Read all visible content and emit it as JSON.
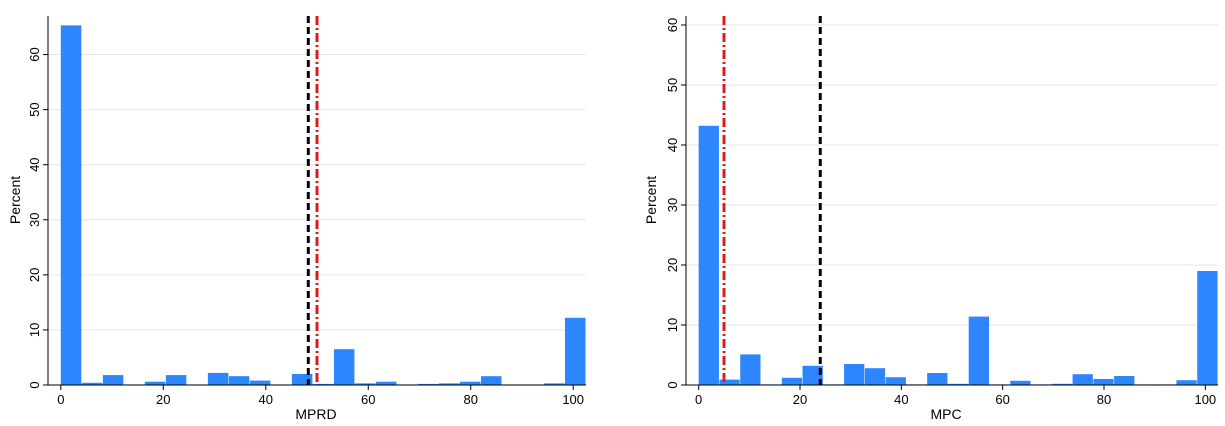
{
  "chart_data": [
    {
      "type": "bar",
      "xlabel": "MPRD",
      "ylabel": "Percent",
      "xlim": [
        -2.5,
        102.5
      ],
      "ylim": [
        0,
        67
      ],
      "xticks": [
        0,
        20,
        40,
        60,
        80,
        100
      ],
      "yticks": [
        0,
        10,
        20,
        30,
        40,
        50,
        60
      ],
      "grid": true,
      "bar_color": "#2e86ff",
      "bin_width": 4.1,
      "bins": [
        {
          "x": 0,
          "y": 65.3
        },
        {
          "x": 4.1,
          "y": 0.4
        },
        {
          "x": 8.2,
          "y": 1.8
        },
        {
          "x": 12.3,
          "y": 0.1
        },
        {
          "x": 16.4,
          "y": 0.6
        },
        {
          "x": 20.5,
          "y": 1.8
        },
        {
          "x": 24.6,
          "y": 0.1
        },
        {
          "x": 28.7,
          "y": 2.2
        },
        {
          "x": 32.8,
          "y": 1.6
        },
        {
          "x": 36.9,
          "y": 0.8
        },
        {
          "x": 41.0,
          "y": 0.1
        },
        {
          "x": 45.1,
          "y": 2.0
        },
        {
          "x": 49.2,
          "y": 0.2
        },
        {
          "x": 53.3,
          "y": 6.5
        },
        {
          "x": 57.4,
          "y": 0.3
        },
        {
          "x": 61.5,
          "y": 0.6
        },
        {
          "x": 65.6,
          "y": 0.1
        },
        {
          "x": 69.7,
          "y": 0.2
        },
        {
          "x": 73.8,
          "y": 0.3
        },
        {
          "x": 77.9,
          "y": 0.6
        },
        {
          "x": 82.0,
          "y": 1.6
        },
        {
          "x": 86.1,
          "y": 0.1
        },
        {
          "x": 90.2,
          "y": 0.1
        },
        {
          "x": 94.3,
          "y": 0.3
        },
        {
          "x": 98.4,
          "y": 12.2
        }
      ],
      "reference_lines": [
        {
          "x": 48.3,
          "color": "#000000",
          "style": "dashed"
        },
        {
          "x": 50.0,
          "color": "#e31a1c",
          "style": "dash-dot"
        }
      ]
    },
    {
      "type": "bar",
      "xlabel": "MPC",
      "ylabel": "Percent",
      "xlim": [
        -2.5,
        102.5
      ],
      "ylim": [
        0,
        61.5
      ],
      "xticks": [
        0,
        20,
        40,
        60,
        80,
        100
      ],
      "yticks": [
        0,
        10,
        20,
        30,
        40,
        50,
        60
      ],
      "grid": true,
      "bar_color": "#2e86ff",
      "bin_width": 4.1,
      "bins": [
        {
          "x": 0,
          "y": 43.2
        },
        {
          "x": 4.1,
          "y": 0.9
        },
        {
          "x": 8.2,
          "y": 5.1
        },
        {
          "x": 12.3,
          "y": 0.1
        },
        {
          "x": 16.4,
          "y": 1.2
        },
        {
          "x": 20.5,
          "y": 3.2
        },
        {
          "x": 24.6,
          "y": 0.1
        },
        {
          "x": 28.7,
          "y": 3.5
        },
        {
          "x": 32.8,
          "y": 2.8
        },
        {
          "x": 36.9,
          "y": 1.3
        },
        {
          "x": 41.0,
          "y": 0.1
        },
        {
          "x": 45.1,
          "y": 2.0
        },
        {
          "x": 49.2,
          "y": 0.2
        },
        {
          "x": 53.3,
          "y": 11.4
        },
        {
          "x": 57.4,
          "y": 0.1
        },
        {
          "x": 61.5,
          "y": 0.7
        },
        {
          "x": 65.6,
          "y": 0.1
        },
        {
          "x": 69.7,
          "y": 0.2
        },
        {
          "x": 73.8,
          "y": 1.8
        },
        {
          "x": 77.9,
          "y": 1.0
        },
        {
          "x": 82.0,
          "y": 1.5
        },
        {
          "x": 86.1,
          "y": 0.1
        },
        {
          "x": 90.2,
          "y": 0.1
        },
        {
          "x": 94.3,
          "y": 0.8
        },
        {
          "x": 98.4,
          "y": 19.0
        }
      ],
      "reference_lines": [
        {
          "x": 5.0,
          "color": "#e31a1c",
          "style": "dash-dot"
        },
        {
          "x": 24.0,
          "color": "#000000",
          "style": "dashed"
        }
      ]
    }
  ]
}
